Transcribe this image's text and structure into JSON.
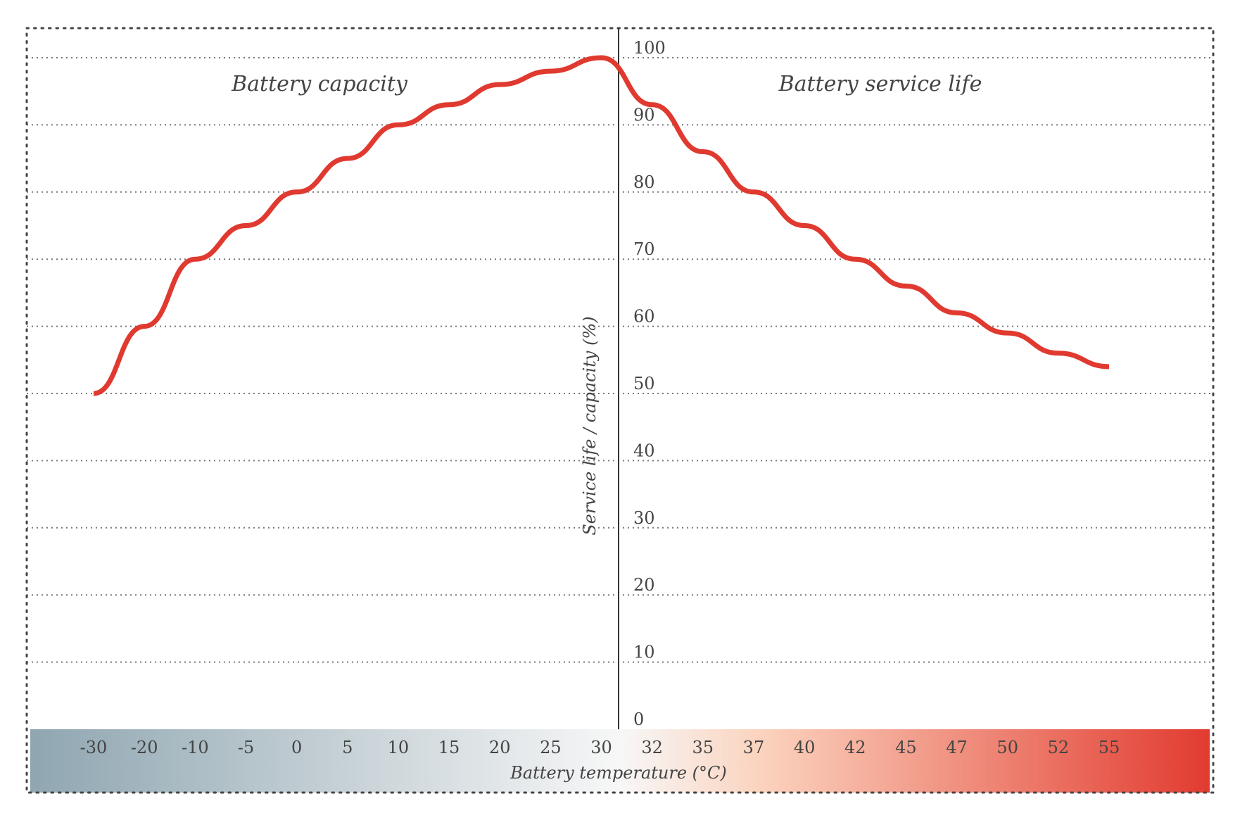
{
  "chart_data": {
    "type": "line",
    "xlabel": "Battery temperature (°C)",
    "ylabel": "Service life / capacity (%)",
    "ylim": [
      0,
      100
    ],
    "y_ticks": [
      0,
      10,
      20,
      30,
      40,
      50,
      60,
      70,
      80,
      90,
      100
    ],
    "grid": true,
    "x_ticks": [
      "-30",
      "-20",
      "-10",
      "-5",
      "0",
      "5",
      "10",
      "15",
      "20",
      "25",
      "30",
      "32",
      "35",
      "37",
      "40",
      "42",
      "45",
      "47",
      "50",
      "52",
      "55"
    ],
    "panels": {
      "left": {
        "title": "Battery capacity"
      },
      "right": {
        "title": "Battery service life"
      }
    },
    "series": [
      {
        "color": "#e03a30",
        "x": [
          "-30",
          "-20",
          "-10",
          "-5",
          "0",
          "5",
          "10",
          "15",
          "20",
          "25",
          "30"
        ],
        "values": [
          50,
          60,
          70,
          75,
          80,
          85,
          90,
          93,
          96,
          98,
          100
        ]
      },
      {
        "color": "#e03a30",
        "x": [
          "30",
          "32",
          "35",
          "37",
          "40",
          "42",
          "45",
          "47",
          "50",
          "52",
          "55"
        ],
        "values": [
          100,
          93,
          86,
          80,
          75,
          70,
          66,
          62,
          59,
          56,
          54
        ]
      }
    ],
    "temperature_bar_colors": {
      "cold": "#8fa6b1",
      "neutral": "#f7f7f7",
      "warm": "#fbd3be",
      "hot": "#e23b30"
    }
  }
}
